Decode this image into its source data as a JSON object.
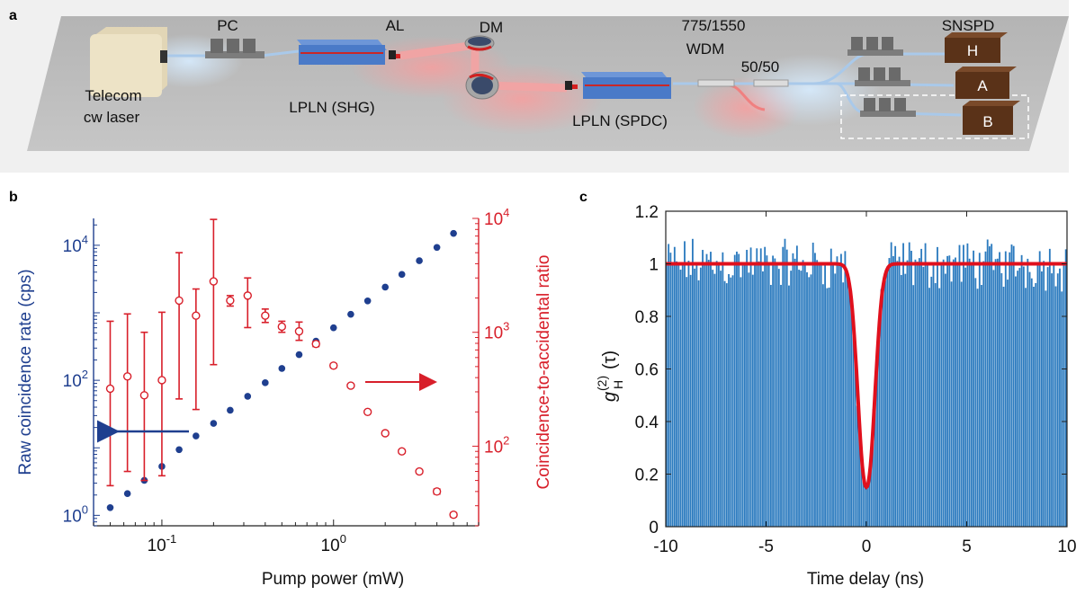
{
  "panels": {
    "a": "a",
    "b": "b",
    "c": "c"
  },
  "setup": {
    "labels": {
      "pc": "PC",
      "al": "AL",
      "dm": "DM",
      "wdm_line1": "775/1550",
      "wdm_line2": "WDM",
      "splitter": "50/50",
      "snspd": "SNSPD",
      "laser_line1": "Telecom",
      "laser_line2": "cw laser",
      "shg": "LPLN (SHG)",
      "spdc": "LPLN (SPDC)",
      "det_h": "H",
      "det_a": "A",
      "det_b": "B"
    },
    "colors": {
      "table": "#b9b9b9",
      "laser_box": "#ede3c6",
      "crystal": "#4a7ac8",
      "detector": "#5a3218",
      "fiber": "#a9c9ea",
      "pump_beam": "#f08080"
    }
  },
  "chart_data": [
    {
      "panel": "b",
      "type": "scatter",
      "xlabel": "Pump power (mW)",
      "ylabel_left": "Raw coincidence rate (cps)",
      "ylabel_right": "Coincidence-to-accidental ratio",
      "x_scale": "log",
      "y_scale": "log",
      "xlim": [
        0.04,
        7
      ],
      "ylim_left": [
        0.7,
        25000
      ],
      "ylim_right": [
        20,
        10000
      ],
      "x_ticks": [
        {
          "base": "10",
          "exp": "-1",
          "value": 0.1
        },
        {
          "base": "10",
          "exp": "0",
          "value": 1
        }
      ],
      "y_ticks_left": [
        {
          "base": "10",
          "exp": "0",
          "value": 1
        },
        {
          "base": "10",
          "exp": "2",
          "value": 100
        },
        {
          "base": "10",
          "exp": "4",
          "value": 10000
        }
      ],
      "y_ticks_right": [
        {
          "base": "10",
          "exp": "2",
          "value": 100
        },
        {
          "base": "10",
          "exp": "3",
          "value": 1000
        },
        {
          "base": "10",
          "exp": "4",
          "value": 10000
        }
      ],
      "colors": {
        "left": "#1f3f8f",
        "right": "#d81f2a"
      },
      "series": [
        {
          "axis": "left",
          "marker": "filled-circle",
          "x": [
            0.05,
            0.063,
            0.079,
            0.1,
            0.126,
            0.158,
            0.2,
            0.25,
            0.316,
            0.4,
            0.5,
            0.63,
            0.79,
            1.0,
            1.26,
            1.58,
            2.0,
            2.5,
            3.16,
            4.0,
            5.0
          ],
          "y": [
            1.3,
            2.1,
            3.3,
            5.3,
            9.4,
            15,
            23,
            36,
            58,
            92,
            150,
            240,
            380,
            600,
            950,
            1500,
            2400,
            3700,
            5900,
            9300,
            15000
          ]
        },
        {
          "axis": "right",
          "marker": "open-circle",
          "x": [
            0.05,
            0.063,
            0.079,
            0.1,
            0.126,
            0.158,
            0.2,
            0.25,
            0.316,
            0.4,
            0.5,
            0.63,
            0.79,
            1.0,
            1.26,
            1.58,
            2.0,
            2.5,
            3.16,
            4.0,
            5.0
          ],
          "y": [
            320,
            410,
            280,
            380,
            1900,
            1400,
            2800,
            1900,
            2100,
            1400,
            1120,
            1020,
            790,
            510,
            340,
            200,
            130,
            90,
            60,
            40,
            25
          ],
          "err_low": [
            45,
            60,
            50,
            55,
            260,
            210,
            520,
            1700,
            1100,
            1220,
            1000,
            850,
            750,
            490,
            330,
            195,
            126,
            87,
            58,
            38,
            24
          ],
          "err_high": [
            1250,
            1450,
            1000,
            1500,
            5000,
            2400,
            9800,
            2100,
            3000,
            1600,
            1250,
            1230,
            830,
            530,
            350,
            205,
            134,
            93,
            62,
            42,
            26
          ]
        }
      ]
    },
    {
      "panel": "c",
      "type": "bar",
      "xlabel": "Time delay (ns)",
      "ylabel_main": "g",
      "ylabel_sup": "(2)",
      "ylabel_sub": "H",
      "ylabel_arg": "(τ)",
      "xlim": [
        -10,
        10
      ],
      "ylim": [
        0,
        1.2
      ],
      "x_ticks": [
        "-10",
        "-5",
        "0",
        "5",
        "10"
      ],
      "y_ticks": [
        "0",
        "0.2",
        "0.4",
        "0.6",
        "0.8",
        "1",
        "1.2"
      ],
      "bin_width_ns": 0.1,
      "histogram_baseline": 1.0,
      "histogram_noise": 0.12,
      "fit": {
        "baseline": 1.0,
        "dip_min": 0.15,
        "center": 0.0,
        "width_ns": 0.95
      },
      "colors": {
        "bars": "#2c7bbf",
        "fit": "#e0101d"
      }
    }
  ]
}
